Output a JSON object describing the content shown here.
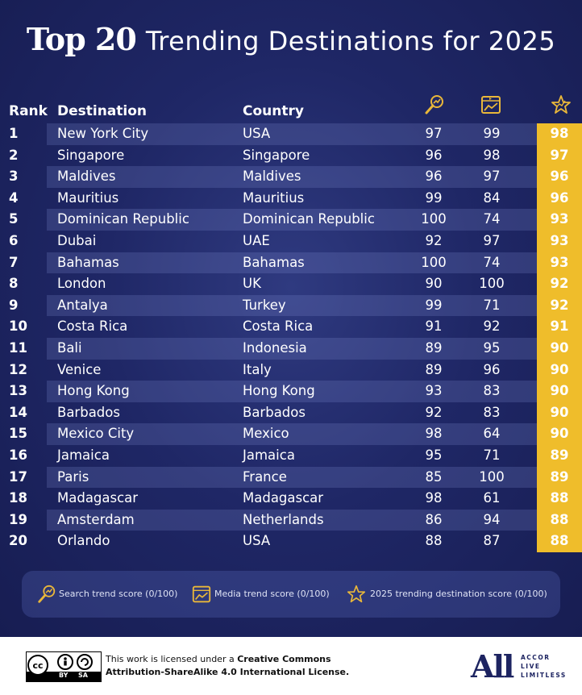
{
  "title": {
    "bold": "Top 20",
    "rest": "Trending Destinations for 2025"
  },
  "headers": {
    "rank": "Rank",
    "destination": "Destination",
    "country": "Country"
  },
  "columns_icons": [
    "search-trend-icon",
    "media-trend-icon",
    "trending-star-icon"
  ],
  "chart_data": {
    "type": "table",
    "columns": [
      "Rank",
      "Destination",
      "Country",
      "Search trend score (0/100)",
      "Media trend score (0/100)",
      "2025 trending destination score (0/100)"
    ],
    "rows": [
      [
        "1",
        "New York City",
        "USA",
        "97",
        "99",
        "98"
      ],
      [
        "2",
        "Singapore",
        "Singapore",
        "96",
        "98",
        "97"
      ],
      [
        "3",
        "Maldives",
        "Maldives",
        "96",
        "97",
        "96"
      ],
      [
        "4",
        "Mauritius",
        "Mauritius",
        "99",
        "84",
        "96"
      ],
      [
        "5",
        "Dominican Republic",
        "Dominican Republic",
        "100",
        "74",
        "93"
      ],
      [
        "6",
        "Dubai",
        "UAE",
        "92",
        "97",
        "93"
      ],
      [
        "7",
        "Bahamas",
        "Bahamas",
        "100",
        "74",
        "93"
      ],
      [
        "8",
        "London",
        "UK",
        "90",
        "100",
        "92"
      ],
      [
        "9",
        "Antalya",
        "Turkey",
        "99",
        "71",
        "92"
      ],
      [
        "10",
        "Costa Rica",
        "Costa Rica",
        "91",
        "92",
        "91"
      ],
      [
        "11",
        "Bali",
        "Indonesia",
        "89",
        "95",
        "90"
      ],
      [
        "12",
        "Venice",
        "Italy",
        "89",
        "96",
        "90"
      ],
      [
        "13",
        "Hong Kong",
        "Hong Kong",
        "93",
        "83",
        "90"
      ],
      [
        "14",
        "Barbados",
        "Barbados",
        "92",
        "83",
        "90"
      ],
      [
        "15",
        "Mexico City",
        "Mexico",
        "98",
        "64",
        "90"
      ],
      [
        "16",
        "Jamaica",
        "Jamaica",
        "95",
        "71",
        "89"
      ],
      [
        "17",
        "Paris",
        "France",
        "85",
        "100",
        "89"
      ],
      [
        "18",
        "Madagascar",
        "Madagascar",
        "98",
        "61",
        "88"
      ],
      [
        "19",
        "Amsterdam",
        "Netherlands",
        "86",
        "94",
        "88"
      ],
      [
        "20",
        "Orlando",
        "USA",
        "88",
        "87",
        "88"
      ]
    ]
  },
  "legend": {
    "search": "Search trend score (0/100)",
    "media": "Media trend score (0/100)",
    "trending": "2025 trending destination score (0/100)"
  },
  "license": {
    "prefix": "This work is licensed under a ",
    "bold1": "Creative Commons",
    "bold2": "Attribution-ShareAlike 4.0 International License.",
    "badge_by": "BY",
    "badge_sa": "SA"
  },
  "brand": {
    "logo": "All",
    "line1": "ACCOR",
    "line2": "LIVE",
    "line3": "LIMITLESS"
  },
  "colors": {
    "navy": "#1f2766",
    "gold": "#efbd2b",
    "accent_icon": "#e9b73a"
  }
}
